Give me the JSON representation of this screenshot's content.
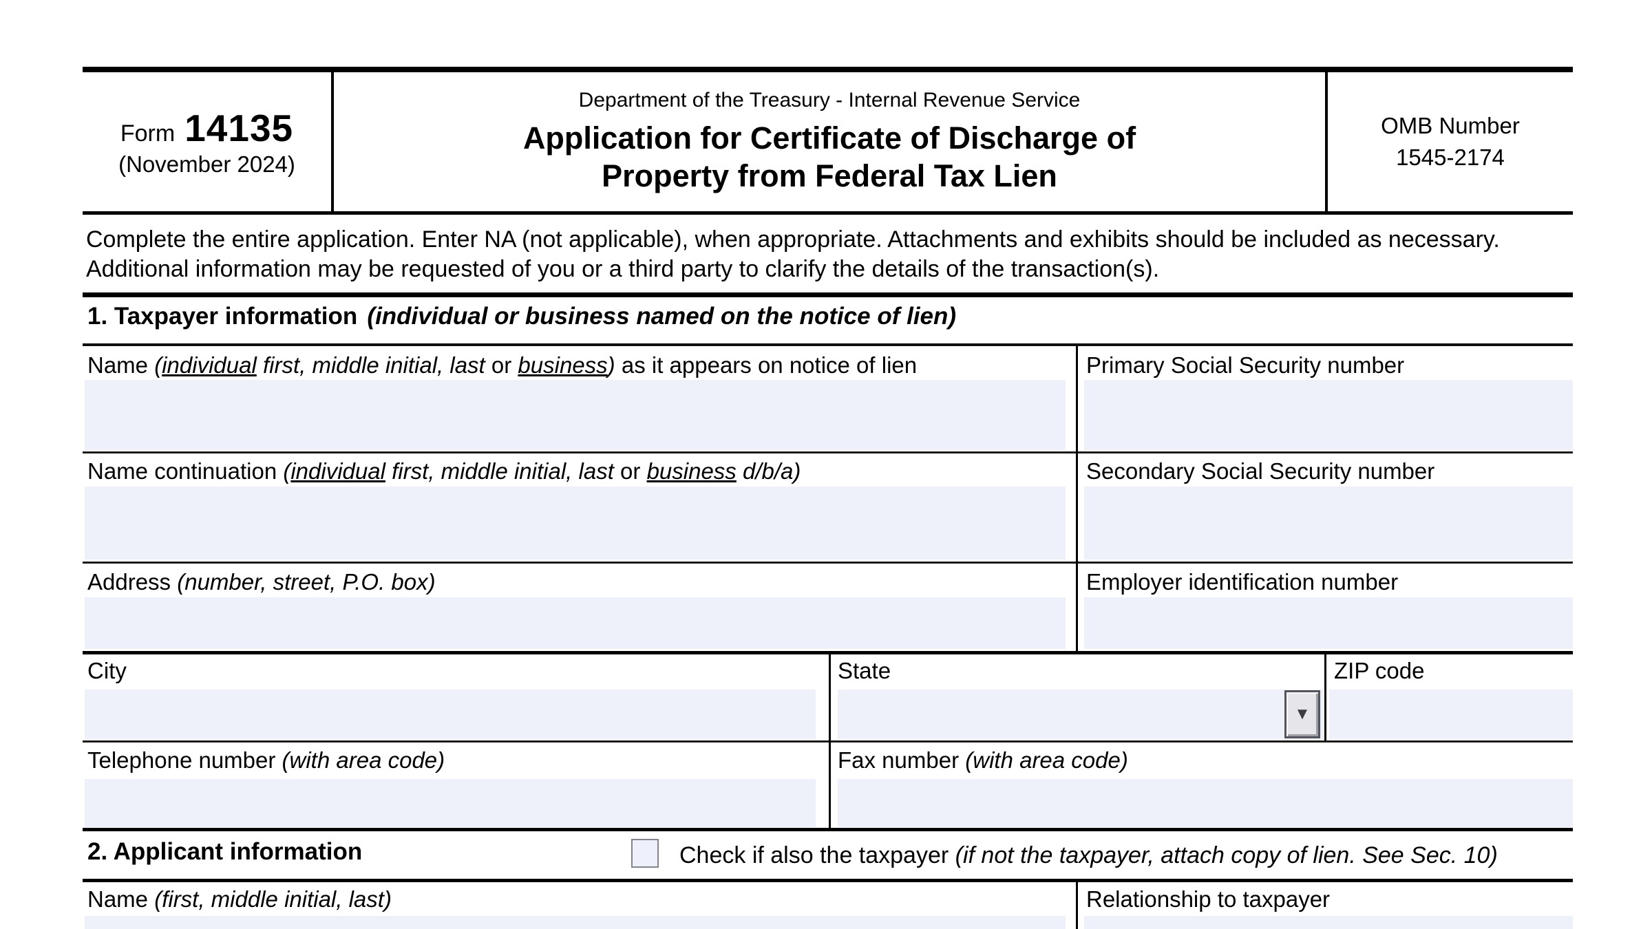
{
  "colors": {
    "field_fill": "#EEF1FA",
    "line": "#000000"
  },
  "header": {
    "form_word": "Form",
    "form_number": "14135",
    "revision": "(November 2024)",
    "agency": "Department of the Treasury - Internal Revenue Service",
    "title_line1": "Application for Certificate of Discharge of",
    "title_line2": "Property from Federal Tax Lien",
    "omb_label": "OMB Number",
    "omb_value": "1545-2174"
  },
  "intro": {
    "text": "Complete the entire application. Enter NA (not applicable), when appropriate. Attachments and exhibits should be included as necessary. Additional information may be requested of you or a third party to clarify the details of the transaction(s)."
  },
  "section1": {
    "title": "1. Taxpayer information",
    "subtitle": "(individual or business named on the notice of lien)",
    "name_label_parts": [
      {
        "t": "Name ",
        "s": ""
      },
      {
        "t": "(",
        "s": "i"
      },
      {
        "t": "individual",
        "s": "iu"
      },
      {
        "t": " first, middle initial, last",
        "s": "i"
      },
      {
        "t": " or ",
        "s": ""
      },
      {
        "t": "business",
        "s": "iu"
      },
      {
        "t": ")",
        "s": "i"
      },
      {
        "t": " as it appears on notice of lien",
        "s": ""
      }
    ],
    "primary_ssn_label": "Primary Social Security number",
    "name_cont_label_parts": [
      {
        "t": "Name continuation ",
        "s": ""
      },
      {
        "t": "(",
        "s": "i"
      },
      {
        "t": "individual",
        "s": "iu"
      },
      {
        "t": " first, middle initial, last",
        "s": "i"
      },
      {
        "t": " or ",
        "s": ""
      },
      {
        "t": "business",
        "s": "iu"
      },
      {
        "t": " d/b/a)",
        "s": "i"
      }
    ],
    "secondary_ssn_label": "Secondary Social Security number",
    "address_label_parts": [
      {
        "t": "Address ",
        "s": ""
      },
      {
        "t": "(number, street, P.O. box)",
        "s": "i"
      }
    ],
    "ein_label": "Employer identification number",
    "city_label": "City",
    "state_label": "State",
    "zip_label": "ZIP code",
    "phone_label_parts": [
      {
        "t": "Telephone number ",
        "s": ""
      },
      {
        "t": "(with area code)",
        "s": "i"
      }
    ],
    "fax_label_parts": [
      {
        "t": "Fax number ",
        "s": ""
      },
      {
        "t": "(with area code)",
        "s": "i"
      }
    ]
  },
  "section2": {
    "title": "2. Applicant information",
    "checkbox_label_parts": [
      {
        "t": "Check if also the taxpayer ",
        "s": ""
      },
      {
        "t": "(if not the taxpayer, attach copy of lien. See Sec. 10)",
        "s": "i"
      }
    ],
    "name_label_parts": [
      {
        "t": "Name ",
        "s": ""
      },
      {
        "t": "(first, middle initial, last)",
        "s": "i"
      }
    ],
    "relationship_label": "Relationship to taxpayer"
  },
  "icons": {
    "state_dropdown": "▼"
  },
  "values": {
    "taxpayer_name": "",
    "primary_ssn": "",
    "name_continuation": "",
    "secondary_ssn": "",
    "address": "",
    "ein": "",
    "city": "",
    "state": "",
    "zip": "",
    "telephone": "",
    "fax": "",
    "applicant_name": "",
    "relationship": "",
    "also_taxpayer_checked": false
  }
}
